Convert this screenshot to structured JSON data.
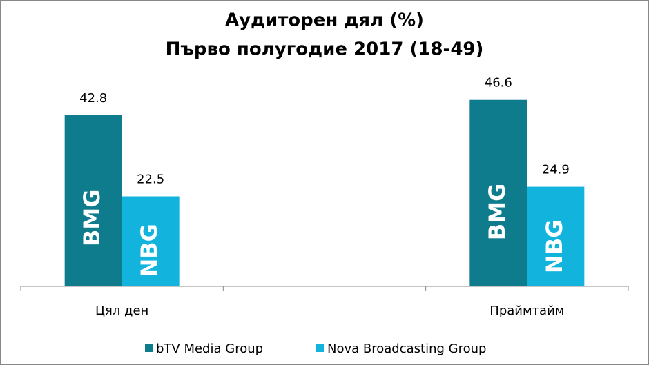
{
  "chart_data": {
    "type": "bar",
    "title": "Аудиторен дял (%)",
    "subtitle": "Първо полугодие 2017 (18-49)",
    "categories": [
      "Цял ден",
      null,
      "Праймтайм"
    ],
    "series": [
      {
        "name": "bTV Media Group",
        "short_name": "BMG",
        "color": "#0e7c8c",
        "values": [
          42.8,
          null,
          46.6
        ]
      },
      {
        "name": "Nova Broadcasting Group",
        "short_name": "NBG",
        "color": "#12b4de",
        "values": [
          22.5,
          null,
          24.9
        ]
      }
    ],
    "ylim": [
      0,
      50
    ]
  }
}
